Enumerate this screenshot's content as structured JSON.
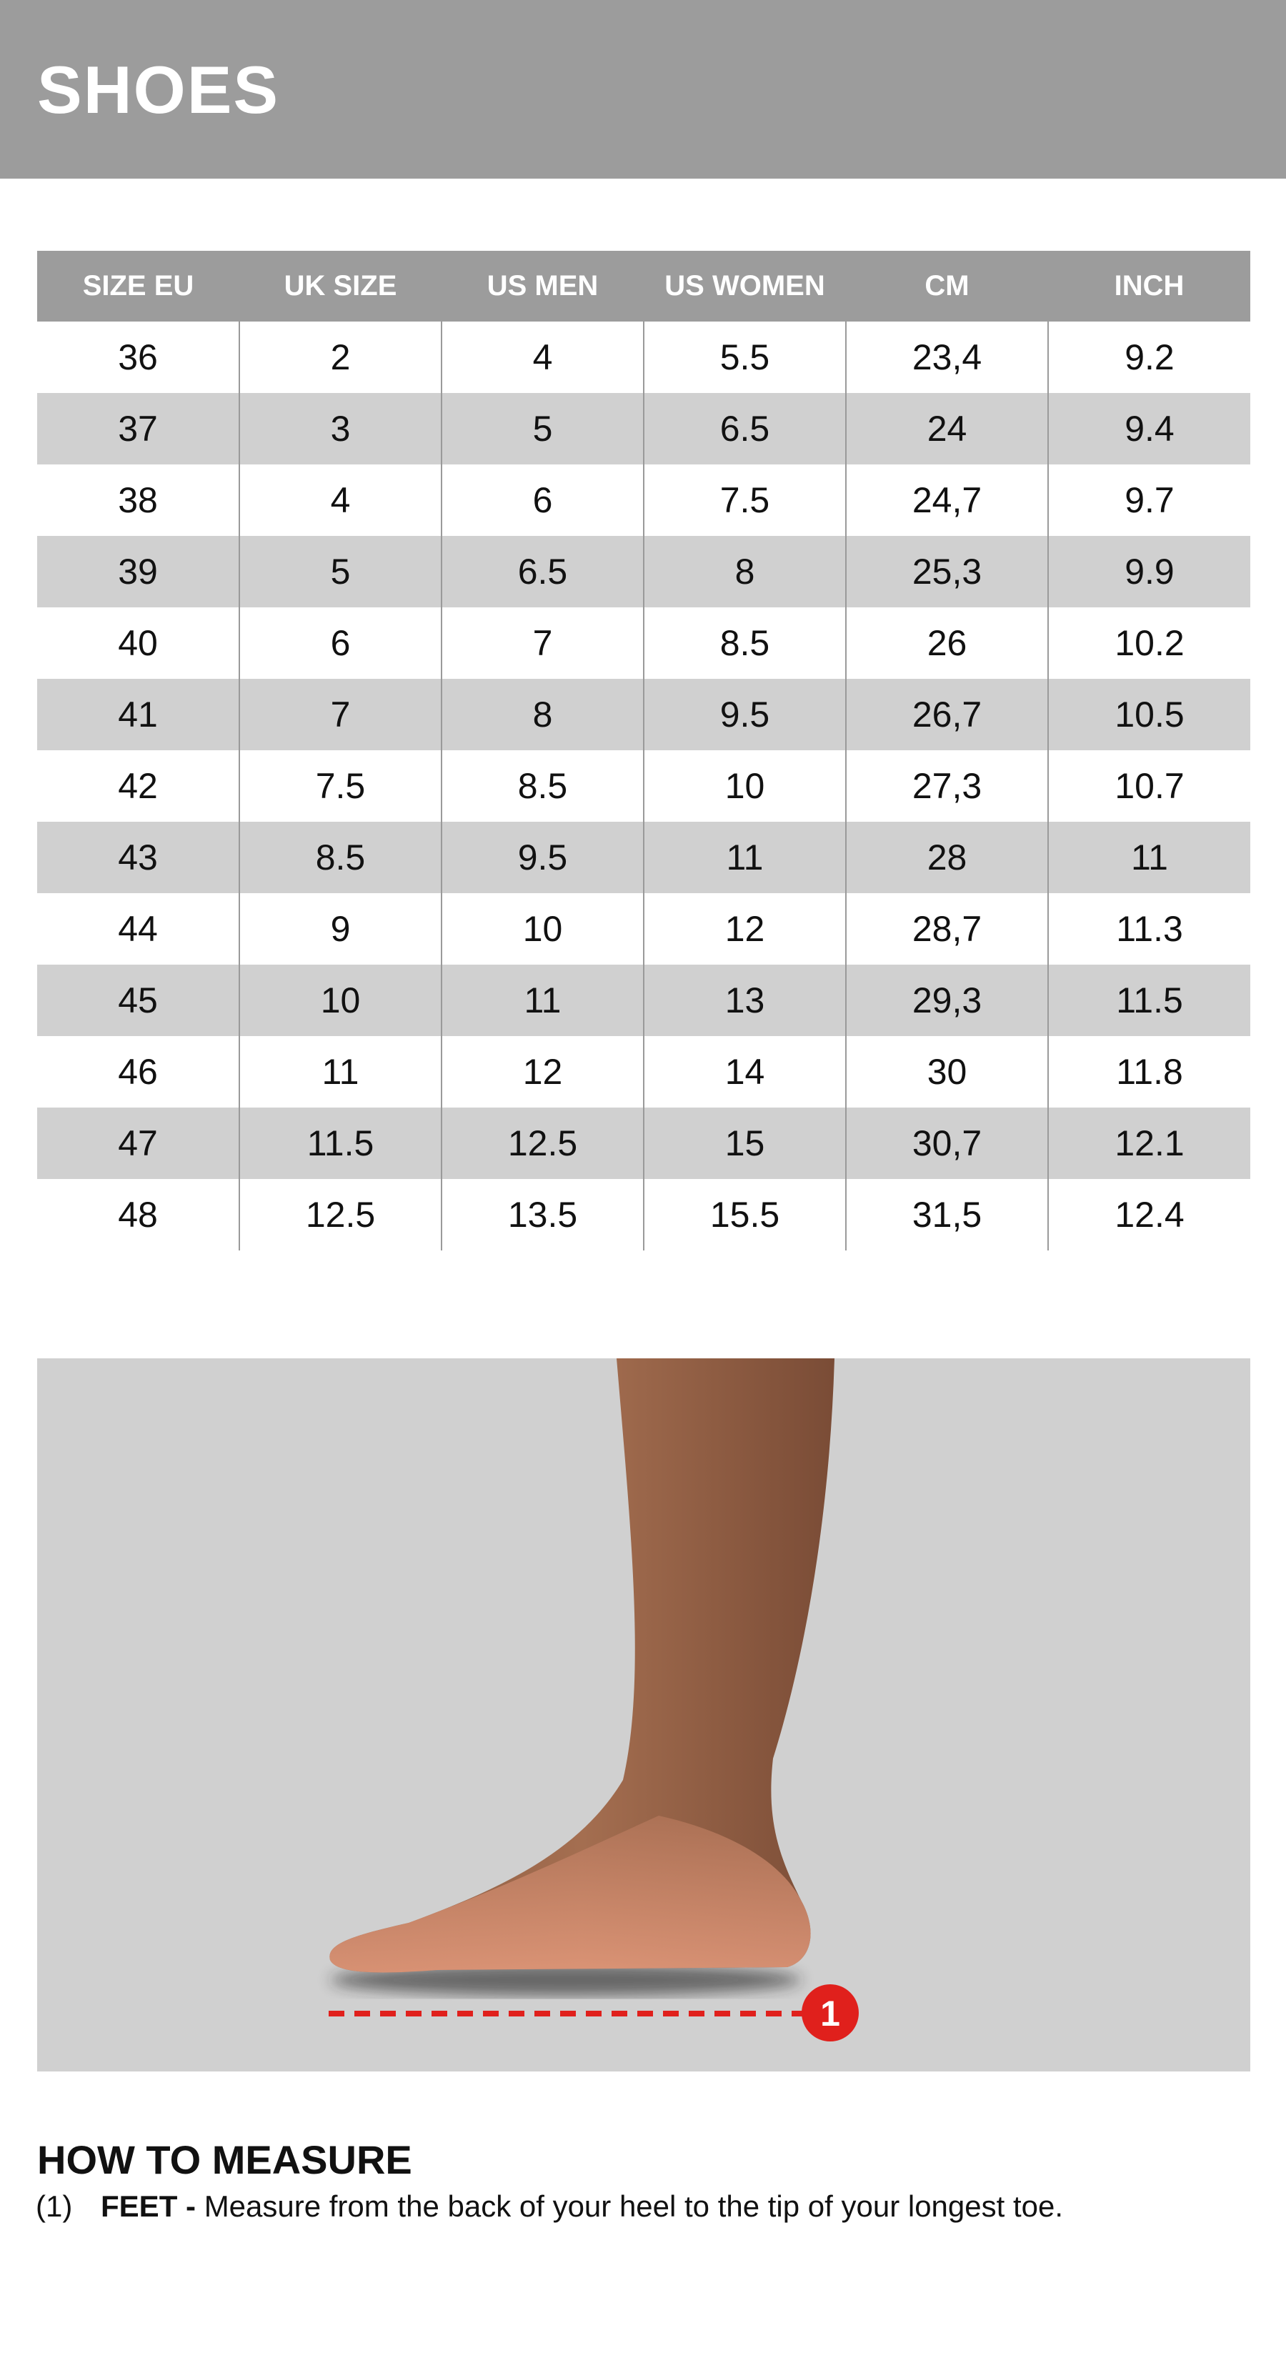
{
  "header": {
    "title": "SHOES"
  },
  "table": {
    "columns": [
      "SIZE EU",
      "UK SIZE",
      "US MEN",
      "US WOMEN",
      "CM",
      "INCH"
    ],
    "rows": [
      [
        "36",
        "2",
        "4",
        "5.5",
        "23,4",
        "9.2"
      ],
      [
        "37",
        "3",
        "5",
        "6.5",
        "24",
        "9.4"
      ],
      [
        "38",
        "4",
        "6",
        "7.5",
        "24,7",
        "9.7"
      ],
      [
        "39",
        "5",
        "6.5",
        "8",
        "25,3",
        "9.9"
      ],
      [
        "40",
        "6",
        "7",
        "8.5",
        "26",
        "10.2"
      ],
      [
        "41",
        "7",
        "8",
        "9.5",
        "26,7",
        "10.5"
      ],
      [
        "42",
        "7.5",
        "8.5",
        "10",
        "27,3",
        "10.7"
      ],
      [
        "43",
        "8.5",
        "9.5",
        "11",
        "28",
        "11"
      ],
      [
        "44",
        "9",
        "10",
        "12",
        "28,7",
        "11.3"
      ],
      [
        "45",
        "10",
        "11",
        "13",
        "29,3",
        "11.5"
      ],
      [
        "46",
        "11",
        "12",
        "14",
        "30",
        "11.8"
      ],
      [
        "47",
        "11.5",
        "12.5",
        "15",
        "30,7",
        "12.1"
      ],
      [
        "48",
        "12.5",
        "13.5",
        "15.5",
        "31,5",
        "12.4"
      ]
    ]
  },
  "illustration": {
    "marker_label": "1",
    "accent_color": "#e0201c"
  },
  "how_to_measure": {
    "title": "HOW TO MEASURE",
    "steps": [
      {
        "number": "(1)",
        "label": "FEET -",
        "text": "Measure from the back of your heel to the tip of your longest toe."
      }
    ]
  },
  "colors": {
    "header_bg": "#9c9c9c",
    "stripe": "#d0d0d0"
  }
}
